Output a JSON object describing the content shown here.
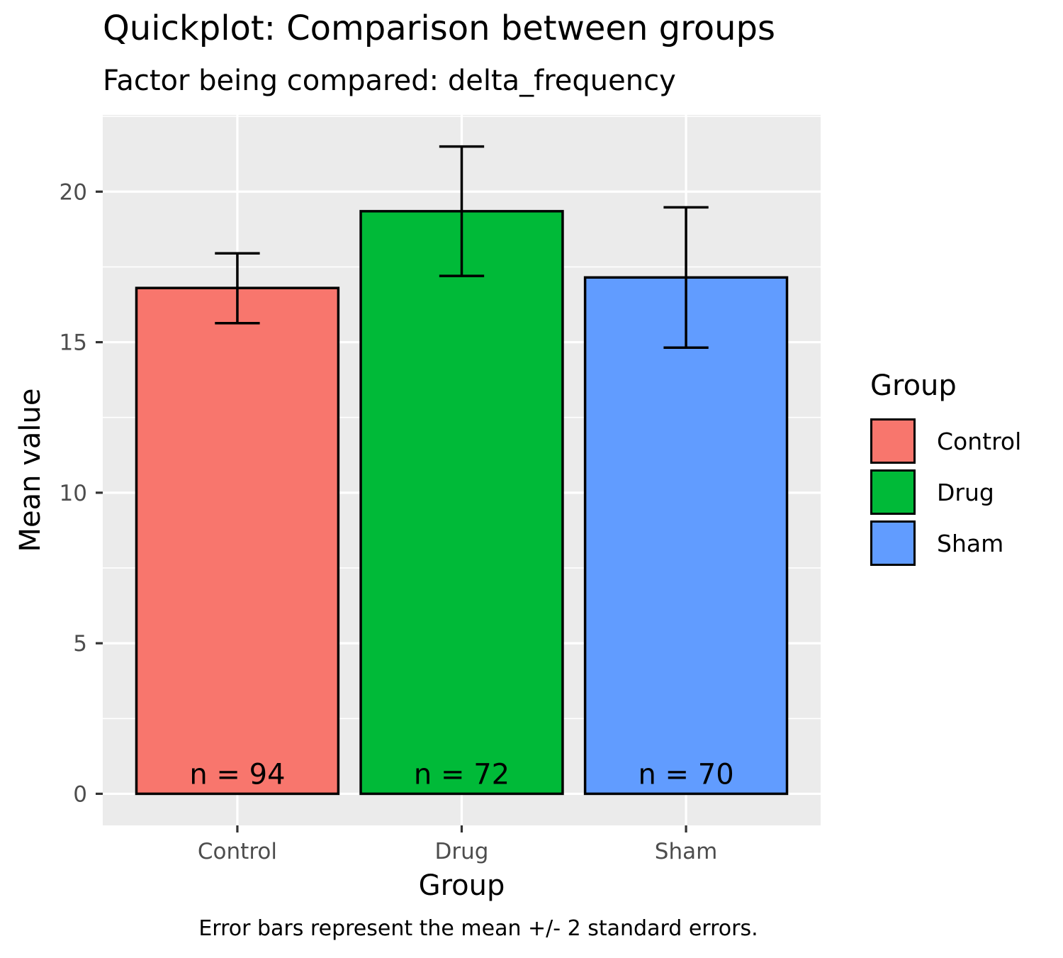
{
  "chart_data": {
    "type": "bar",
    "title": "Quickplot: Comparison between groups",
    "subtitle": "Factor being compared: delta_frequency",
    "xlabel": "Group",
    "ylabel": "Mean value",
    "caption": "Error bars represent the mean +/- 2 standard errors.",
    "categories": [
      "Control",
      "Drug",
      "Sham"
    ],
    "values": [
      16.8,
      19.35,
      17.15
    ],
    "error_low": [
      15.63,
      17.2,
      14.82
    ],
    "error_high": [
      17.95,
      21.5,
      19.48
    ],
    "n_labels": [
      "n = 94",
      "n = 72",
      "n = 70"
    ],
    "colors": [
      "#F8766D",
      "#00BA38",
      "#619CFF"
    ],
    "ylim": [
      -1.05,
      22.55
    ],
    "yticks": [
      0,
      5,
      10,
      15,
      20
    ],
    "ytick_labels": [
      "0",
      "5",
      "10",
      "15",
      "20"
    ],
    "grid": true,
    "legend": {
      "title": "Group",
      "position": "right",
      "entries": [
        "Control",
        "Drug",
        "Sham"
      ]
    }
  }
}
